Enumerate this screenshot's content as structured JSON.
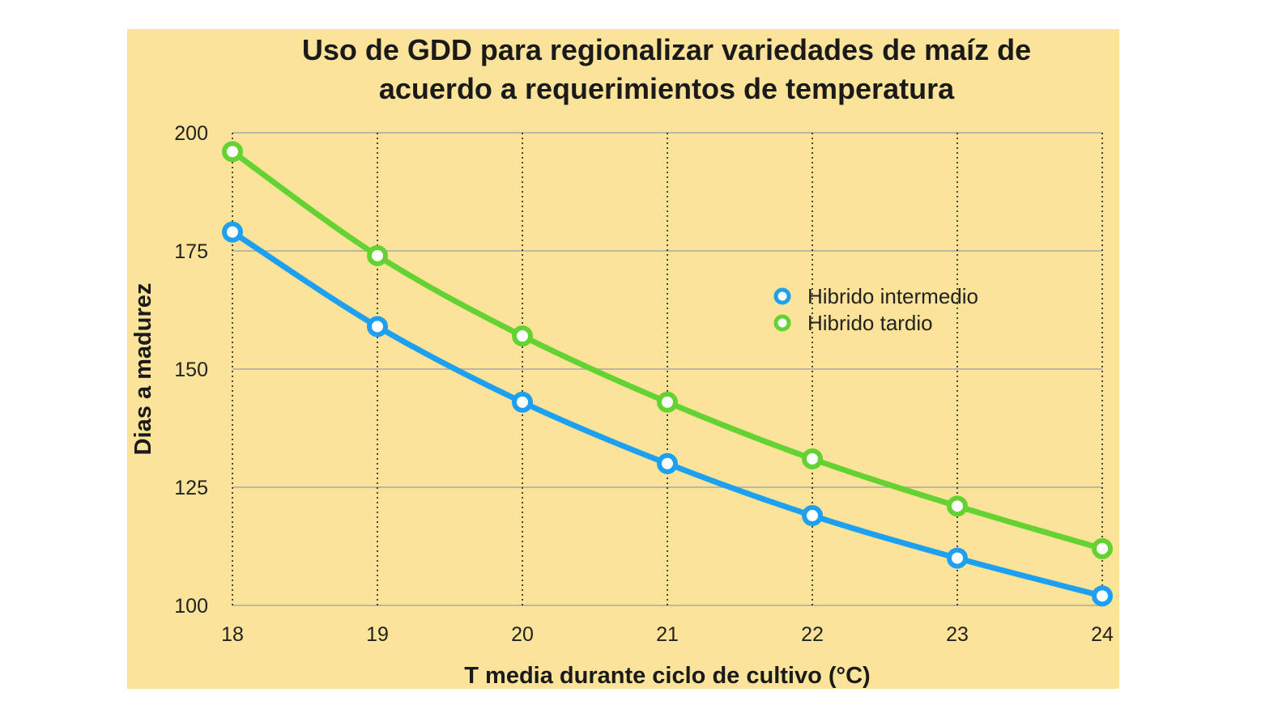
{
  "colors": {
    "background": "#fce39a",
    "page": "#ffffff",
    "series_intermedio": "#1ea0f0",
    "series_tardio": "#64d232",
    "grid": "#a8a8a8"
  },
  "chart_data": {
    "type": "line",
    "title_lines": [
      "Uso de GDD para regionalizar variedades de maíz de",
      "acuerdo a requerimientos de temperatura"
    ],
    "xlabel": "T media durante ciclo de cultivo (°C)",
    "ylabel": "Dias a madurez",
    "x": [
      18,
      19,
      20,
      21,
      22,
      23,
      24
    ],
    "x_tick_labels": [
      "18",
      "19",
      "20",
      "21",
      "22",
      "23",
      "24"
    ],
    "y_tick_labels": [
      "200",
      "175",
      "150",
      "125",
      "100"
    ],
    "y_ticks": [
      200,
      175,
      150,
      125,
      100
    ],
    "xlim": [
      18,
      24
    ],
    "ylim": [
      100,
      200
    ],
    "grid": "horizontal solid, vertical dotted",
    "legend_position": "right-center",
    "series": [
      {
        "name": "Hibrido intermedio",
        "color": "#1ea0f0",
        "values": [
          179,
          159,
          143,
          130,
          119,
          110,
          102
        ]
      },
      {
        "name": "Hibrido tardio",
        "color": "#64d232",
        "values": [
          196,
          174,
          157,
          143,
          131,
          121,
          112
        ]
      }
    ]
  }
}
